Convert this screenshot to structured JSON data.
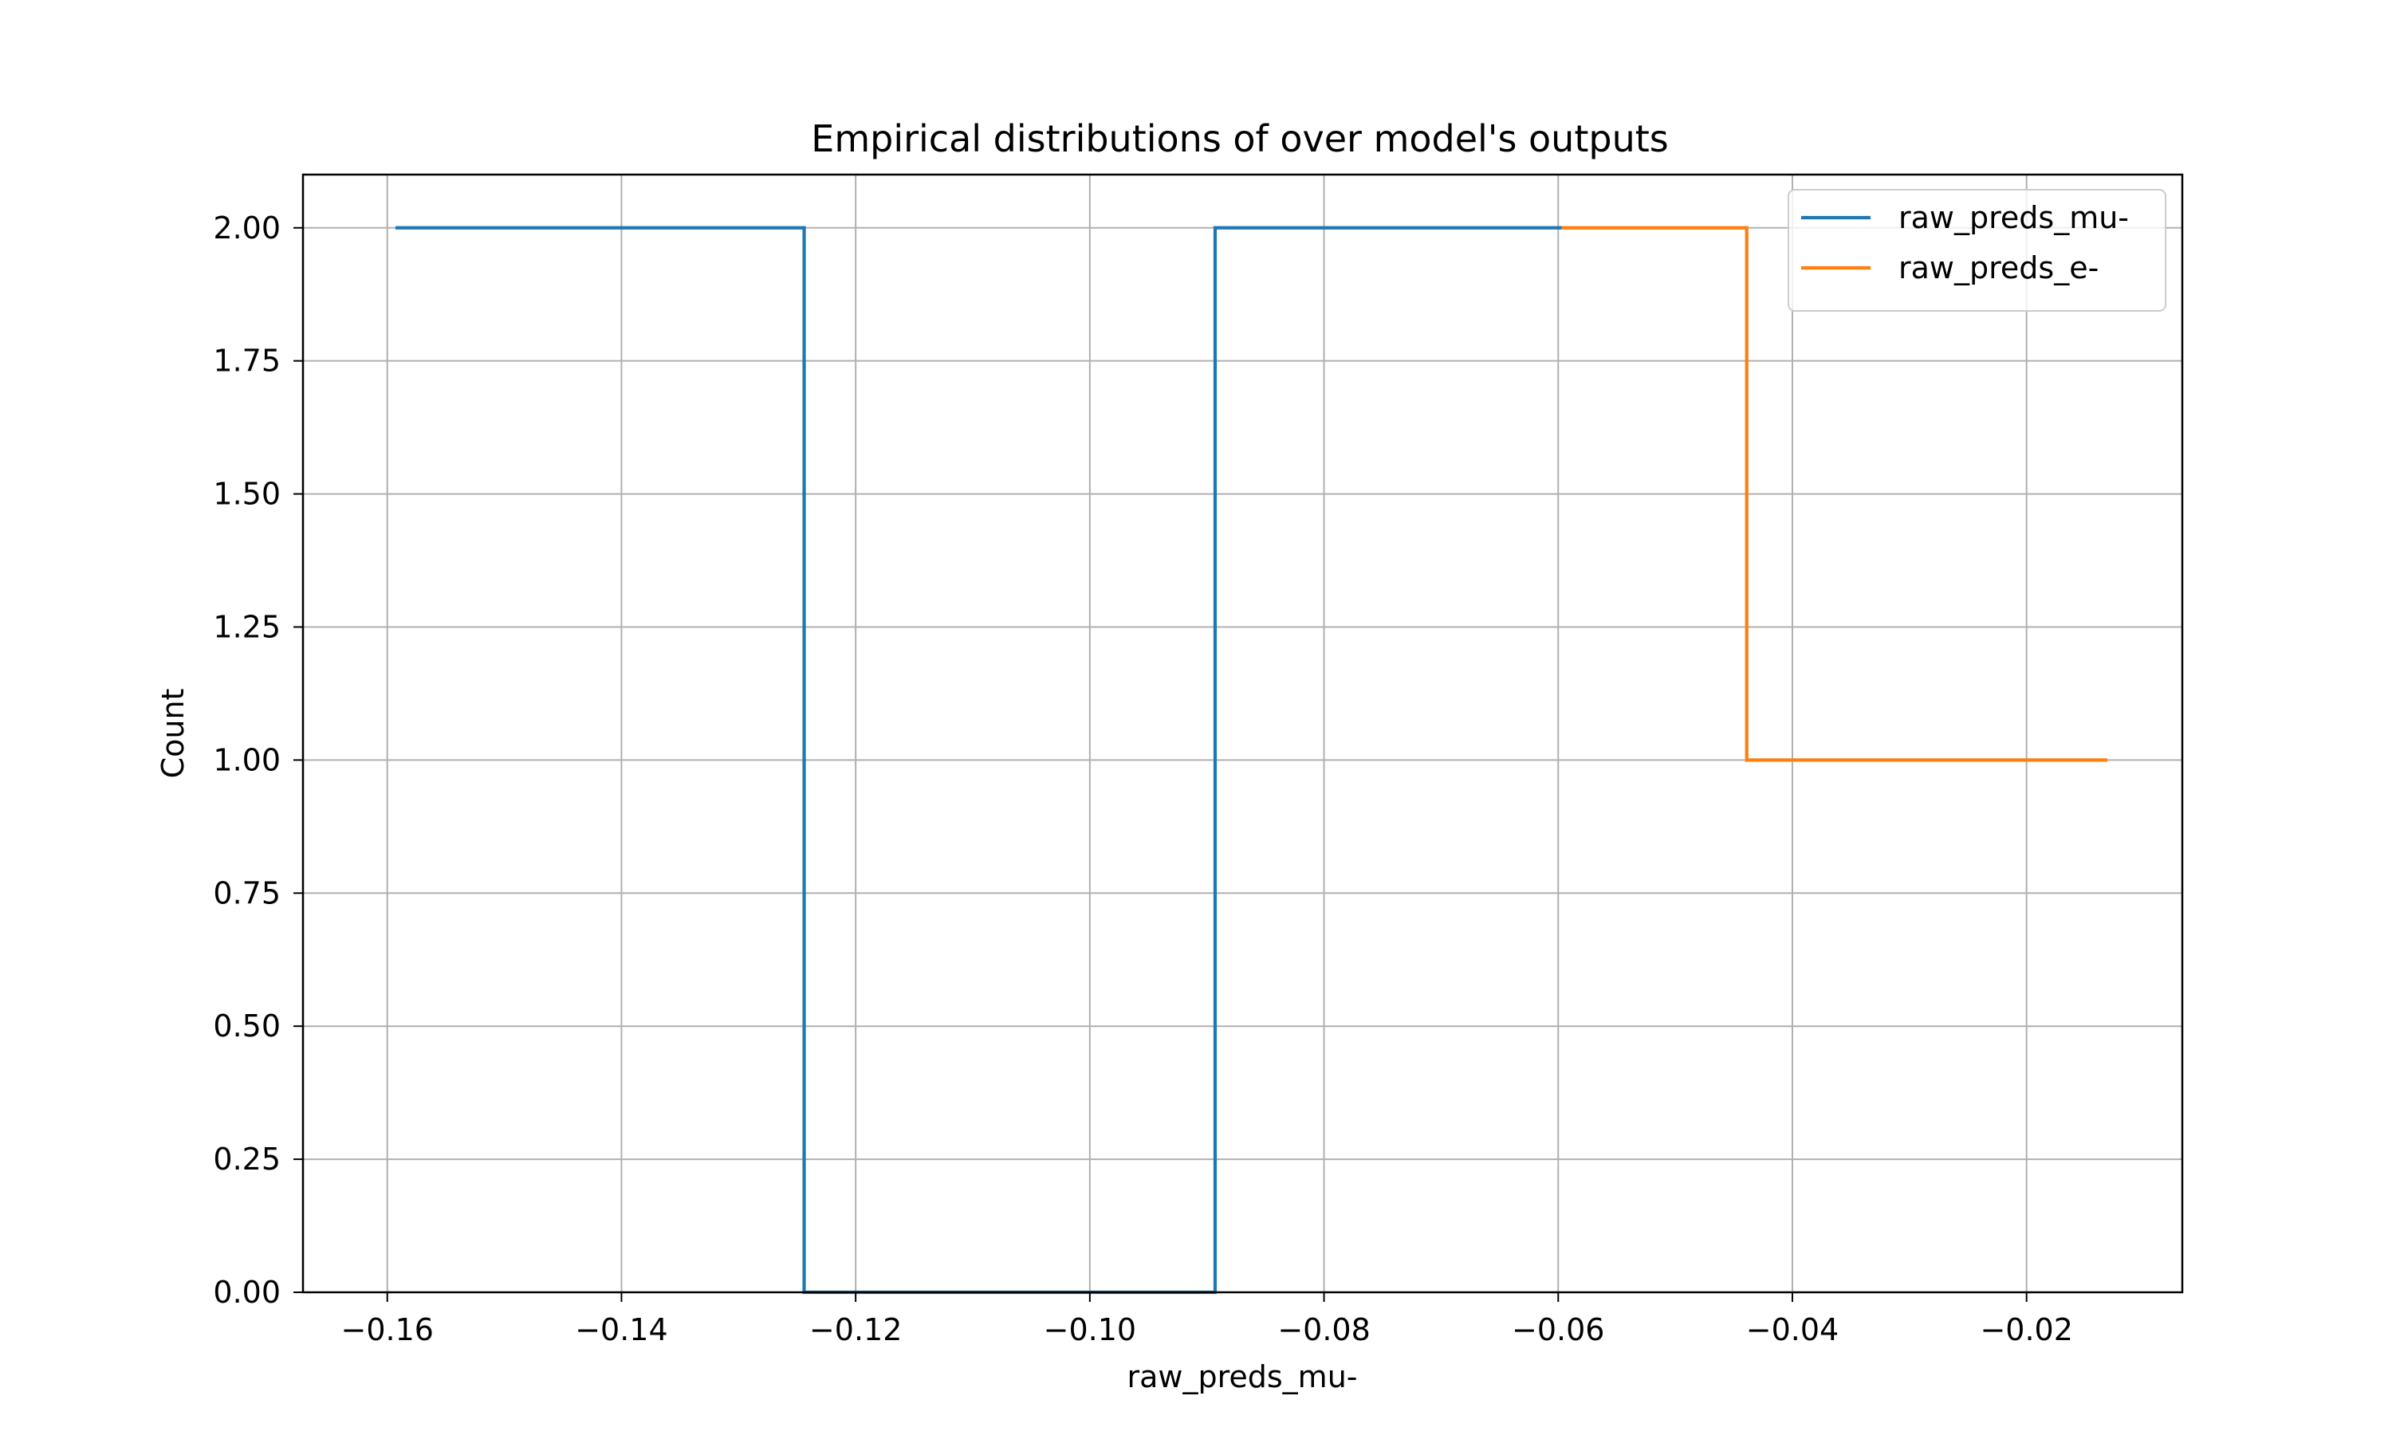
{
  "chart_data": {
    "type": "line",
    "step": "post",
    "title": "Empirical distributions of over model's outputs",
    "xlabel": "raw_preds_mu-",
    "ylabel": "Count",
    "xlim": [
      -0.1672,
      -0.0067
    ],
    "ylim": [
      0.0,
      2.1
    ],
    "xticks": [
      -0.16,
      -0.14,
      -0.12,
      -0.1,
      -0.08,
      -0.06,
      -0.04,
      -0.02
    ],
    "xtick_labels": [
      "−0.16",
      "−0.14",
      "−0.12",
      "−0.10",
      "−0.08",
      "−0.06",
      "−0.04",
      "−0.02"
    ],
    "yticks": [
      0.0,
      0.25,
      0.5,
      0.75,
      1.0,
      1.25,
      1.5,
      1.75,
      2.0
    ],
    "ytick_labels": [
      "0.00",
      "0.25",
      "0.50",
      "0.75",
      "1.00",
      "1.25",
      "1.50",
      "1.75",
      "2.00"
    ],
    "grid": true,
    "legend_position": "top-right",
    "series": [
      {
        "name": "raw_preds_mu-",
        "color": "#1f77b4",
        "x": [
          -0.1593,
          -0.1244,
          -0.1244,
          -0.0893,
          -0.0893,
          -0.0597
        ],
        "y": [
          2,
          2,
          0,
          0,
          2,
          2
        ]
      },
      {
        "name": "raw_preds_e-",
        "color": "#ff7f0e",
        "x": [
          -0.0597,
          -0.0439,
          -0.0439,
          -0.0131
        ],
        "y": [
          2,
          2,
          1,
          1
        ]
      }
    ]
  }
}
